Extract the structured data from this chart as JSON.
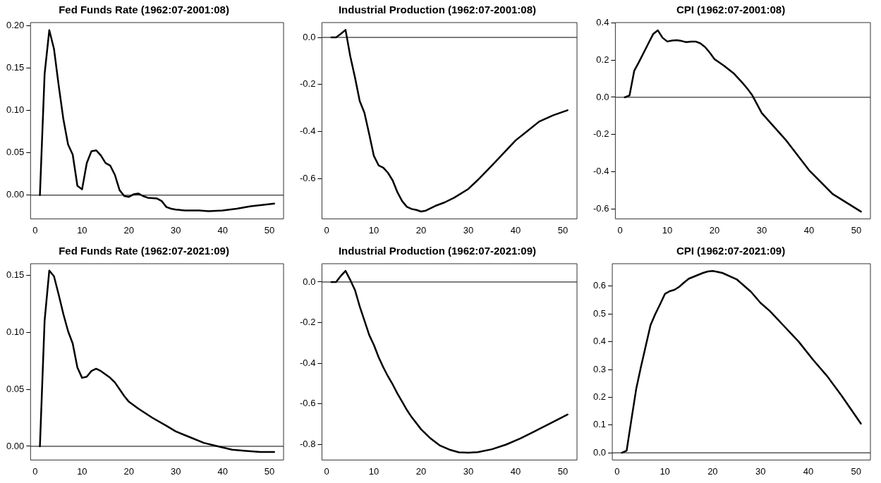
{
  "chart_data": [
    {
      "type": "line",
      "title": "Fed Funds Rate (1962:07-2001:08)",
      "xlim": [
        -1,
        53
      ],
      "xticks": [
        0,
        10,
        20,
        30,
        40,
        50
      ],
      "ylim": [
        -0.028,
        0.204
      ],
      "yticks": [
        {
          "value": 0,
          "label": "0.00"
        },
        {
          "value": 0.05,
          "label": "0.05"
        },
        {
          "value": 0.1,
          "label": "0.10"
        },
        {
          "value": 0.15,
          "label": "0.15"
        },
        {
          "value": 0.2,
          "label": "0.20"
        }
      ],
      "grid": false,
      "legend": false,
      "marker": "none",
      "line_style": "solid",
      "ref_lines": [
        {
          "axis": "y",
          "value": 0,
          "color": "#000000"
        }
      ],
      "series": [
        {
          "color": "#000000",
          "x": [
            1,
            2,
            3,
            4,
            5,
            6,
            7,
            8,
            9,
            10,
            11,
            12,
            13,
            14,
            15,
            16,
            17,
            18,
            19,
            20,
            21,
            22,
            23,
            24,
            26,
            27,
            28,
            29,
            30,
            32,
            35,
            37,
            40,
            43,
            46,
            51
          ],
          "values": [
            0,
            0.143,
            0.195,
            0.173,
            0.13,
            0.09,
            0.06,
            0.048,
            0.011,
            0.007,
            0.038,
            0.052,
            0.053,
            0.047,
            0.038,
            0.035,
            0.024,
            0.006,
            -0.001,
            -0.002,
            0.001,
            0.002,
            -0.001,
            -0.003,
            -0.004,
            -0.007,
            -0.014,
            -0.016,
            -0.017,
            -0.018,
            -0.018,
            -0.019,
            -0.018,
            -0.016,
            -0.013,
            -0.01
          ]
        }
      ]
    },
    {
      "type": "line",
      "title": "Industrial Production (1962:07-2001:08)",
      "xlim": [
        -1,
        53
      ],
      "xticks": [
        0,
        10,
        20,
        30,
        40,
        50
      ],
      "ylim": [
        -0.77,
        0.063
      ],
      "yticks": [
        {
          "value": 0,
          "label": "0.0"
        },
        {
          "value": -0.2,
          "label": "-0.2"
        },
        {
          "value": -0.4,
          "label": "-0.4"
        },
        {
          "value": -0.6,
          "label": "-0.6"
        }
      ],
      "grid": false,
      "legend": false,
      "marker": "none",
      "line_style": "solid",
      "ref_lines": [
        {
          "axis": "y",
          "value": 0,
          "color": "#000000"
        }
      ],
      "series": [
        {
          "color": "#000000",
          "x": [
            1,
            2,
            3,
            4,
            5,
            6,
            7,
            8,
            9,
            10,
            11,
            12,
            13,
            14,
            15,
            16,
            17,
            18,
            19,
            20,
            21,
            22,
            23,
            25,
            27,
            30,
            32,
            35,
            38,
            40,
            42,
            45,
            48,
            51
          ],
          "values": [
            0,
            0,
            0.015,
            0.032,
            -0.08,
            -0.17,
            -0.27,
            -0.32,
            -0.41,
            -0.503,
            -0.543,
            -0.553,
            -0.575,
            -0.608,
            -0.658,
            -0.695,
            -0.719,
            -0.728,
            -0.732,
            -0.739,
            -0.735,
            -0.725,
            -0.715,
            -0.7,
            -0.68,
            -0.643,
            -0.605,
            -0.543,
            -0.48,
            -0.437,
            -0.405,
            -0.357,
            -0.33,
            -0.309
          ]
        }
      ]
    },
    {
      "type": "line",
      "title": "CPI (1962:07-2001:08)",
      "xlim": [
        -1,
        53
      ],
      "xticks": [
        0,
        10,
        20,
        30,
        40,
        50
      ],
      "ylim": [
        -0.654,
        0.402
      ],
      "yticks": [
        {
          "value": -0.6,
          "label": "-0.6"
        },
        {
          "value": -0.4,
          "label": "-0.4"
        },
        {
          "value": -0.2,
          "label": "-0.2"
        },
        {
          "value": 0,
          "label": "0.0"
        },
        {
          "value": 0.2,
          "label": "0.2"
        },
        {
          "value": 0.4,
          "label": "0.4"
        }
      ],
      "grid": false,
      "legend": false,
      "marker": "none",
      "line_style": "solid",
      "ref_lines": [
        {
          "axis": "y",
          "value": 0,
          "color": "#000000"
        }
      ],
      "series": [
        {
          "color": "#000000",
          "x": [
            1,
            2,
            3,
            4,
            5,
            6,
            7,
            8,
            9,
            10,
            11,
            12,
            13,
            14,
            15,
            16,
            17,
            18,
            19,
            20,
            22,
            24,
            26,
            27,
            28,
            30,
            35,
            40,
            45,
            51
          ],
          "values": [
            0,
            0.01,
            0.143,
            0.19,
            0.24,
            0.29,
            0.34,
            0.36,
            0.32,
            0.3,
            0.305,
            0.307,
            0.303,
            0.297,
            0.3,
            0.3,
            0.29,
            0.27,
            0.24,
            0.205,
            0.17,
            0.13,
            0.075,
            0.045,
            0.01,
            -0.085,
            -0.227,
            -0.392,
            -0.52,
            -0.615
          ]
        }
      ]
    },
    {
      "type": "line",
      "title": "Fed Funds Rate (1962:07-2021:09)",
      "xlim": [
        -1,
        53
      ],
      "xticks": [
        0,
        10,
        20,
        30,
        40,
        50
      ],
      "ylim": [
        -0.012,
        0.16
      ],
      "yticks": [
        {
          "value": 0,
          "label": "0.00"
        },
        {
          "value": 0.05,
          "label": "0.05"
        },
        {
          "value": 0.1,
          "label": "0.10"
        },
        {
          "value": 0.15,
          "label": "0.15"
        }
      ],
      "grid": false,
      "legend": false,
      "marker": "none",
      "line_style": "solid",
      "ref_lines": [
        {
          "axis": "y",
          "value": 0,
          "color": "#000000"
        }
      ],
      "series": [
        {
          "color": "#000000",
          "x": [
            1,
            2,
            3,
            4,
            5,
            6,
            7,
            8,
            9,
            10,
            11,
            12,
            13,
            14,
            15,
            16,
            17,
            18,
            19,
            20,
            22,
            25,
            28,
            30,
            33,
            36,
            39,
            42,
            45,
            48,
            51
          ],
          "values": [
            0,
            0.11,
            0.154,
            0.149,
            0.133,
            0.116,
            0.101,
            0.09,
            0.069,
            0.06,
            0.061,
            0.066,
            0.068,
            0.066,
            0.063,
            0.06,
            0.056,
            0.05,
            0.044,
            0.039,
            0.033,
            0.025,
            0.018,
            0.013,
            0.008,
            0.003,
            0,
            -0.003,
            -0.004,
            -0.005,
            -0.005
          ]
        }
      ]
    },
    {
      "type": "line",
      "title": "Industrial Production (1962:07-2021:09)",
      "xlim": [
        -1,
        53
      ],
      "xticks": [
        0,
        10,
        20,
        30,
        40,
        50
      ],
      "ylim": [
        -0.876,
        0.09
      ],
      "yticks": [
        {
          "value": 0,
          "label": "0.0"
        },
        {
          "value": -0.2,
          "label": "-0.2"
        },
        {
          "value": -0.4,
          "label": "-0.4"
        },
        {
          "value": -0.6,
          "label": "-0.6"
        },
        {
          "value": -0.8,
          "label": "-0.8"
        }
      ],
      "grid": false,
      "legend": false,
      "marker": "none",
      "line_style": "solid",
      "ref_lines": [
        {
          "axis": "y",
          "value": 0,
          "color": "#000000"
        }
      ],
      "series": [
        {
          "color": "#000000",
          "x": [
            1,
            2,
            3,
            4,
            5,
            6,
            7,
            8,
            9,
            10,
            11,
            12,
            13,
            14,
            15,
            16,
            17,
            18,
            20,
            22,
            24,
            26,
            28,
            30,
            32,
            35,
            38,
            41,
            44,
            47,
            51
          ],
          "values": [
            0,
            0,
            0.03,
            0.055,
            0.01,
            -0.04,
            -0.12,
            -0.19,
            -0.26,
            -0.31,
            -0.37,
            -0.42,
            -0.465,
            -0.505,
            -0.55,
            -0.59,
            -0.63,
            -0.665,
            -0.725,
            -0.77,
            -0.805,
            -0.825,
            -0.838,
            -0.84,
            -0.837,
            -0.823,
            -0.8,
            -0.77,
            -0.735,
            -0.7,
            -0.652
          ]
        }
      ]
    },
    {
      "type": "line",
      "title": "CPI (1962:07-2021:09)",
      "xlim": [
        -1,
        53
      ],
      "xticks": [
        0,
        10,
        20,
        30,
        40,
        50
      ],
      "ylim": [
        -0.026,
        0.681
      ],
      "yticks": [
        {
          "value": 0,
          "label": "0.0"
        },
        {
          "value": 0.1,
          "label": "0.1"
        },
        {
          "value": 0.2,
          "label": "0.2"
        },
        {
          "value": 0.3,
          "label": "0.3"
        },
        {
          "value": 0.4,
          "label": "0.4"
        },
        {
          "value": 0.5,
          "label": "0.5"
        },
        {
          "value": 0.6,
          "label": "0.6"
        }
      ],
      "grid": false,
      "legend": false,
      "marker": "none",
      "line_style": "solid",
      "ref_lines": [
        {
          "axis": "y",
          "value": 0,
          "color": "#000000"
        }
      ],
      "series": [
        {
          "color": "#000000",
          "x": [
            1,
            2,
            3,
            4,
            5,
            6,
            7,
            8,
            9,
            10,
            11,
            12,
            13,
            14,
            15,
            16,
            17,
            18,
            19,
            20,
            22,
            25,
            28,
            30,
            32,
            35,
            38,
            41,
            44,
            47,
            51
          ],
          "values": [
            0,
            0.008,
            0.12,
            0.23,
            0.31,
            0.385,
            0.46,
            0.5,
            0.535,
            0.572,
            0.582,
            0.587,
            0.598,
            0.613,
            0.627,
            0.634,
            0.641,
            0.648,
            0.653,
            0.655,
            0.648,
            0.625,
            0.58,
            0.54,
            0.51,
            0.455,
            0.4,
            0.335,
            0.275,
            0.205,
            0.105
          ]
        }
      ]
    }
  ]
}
